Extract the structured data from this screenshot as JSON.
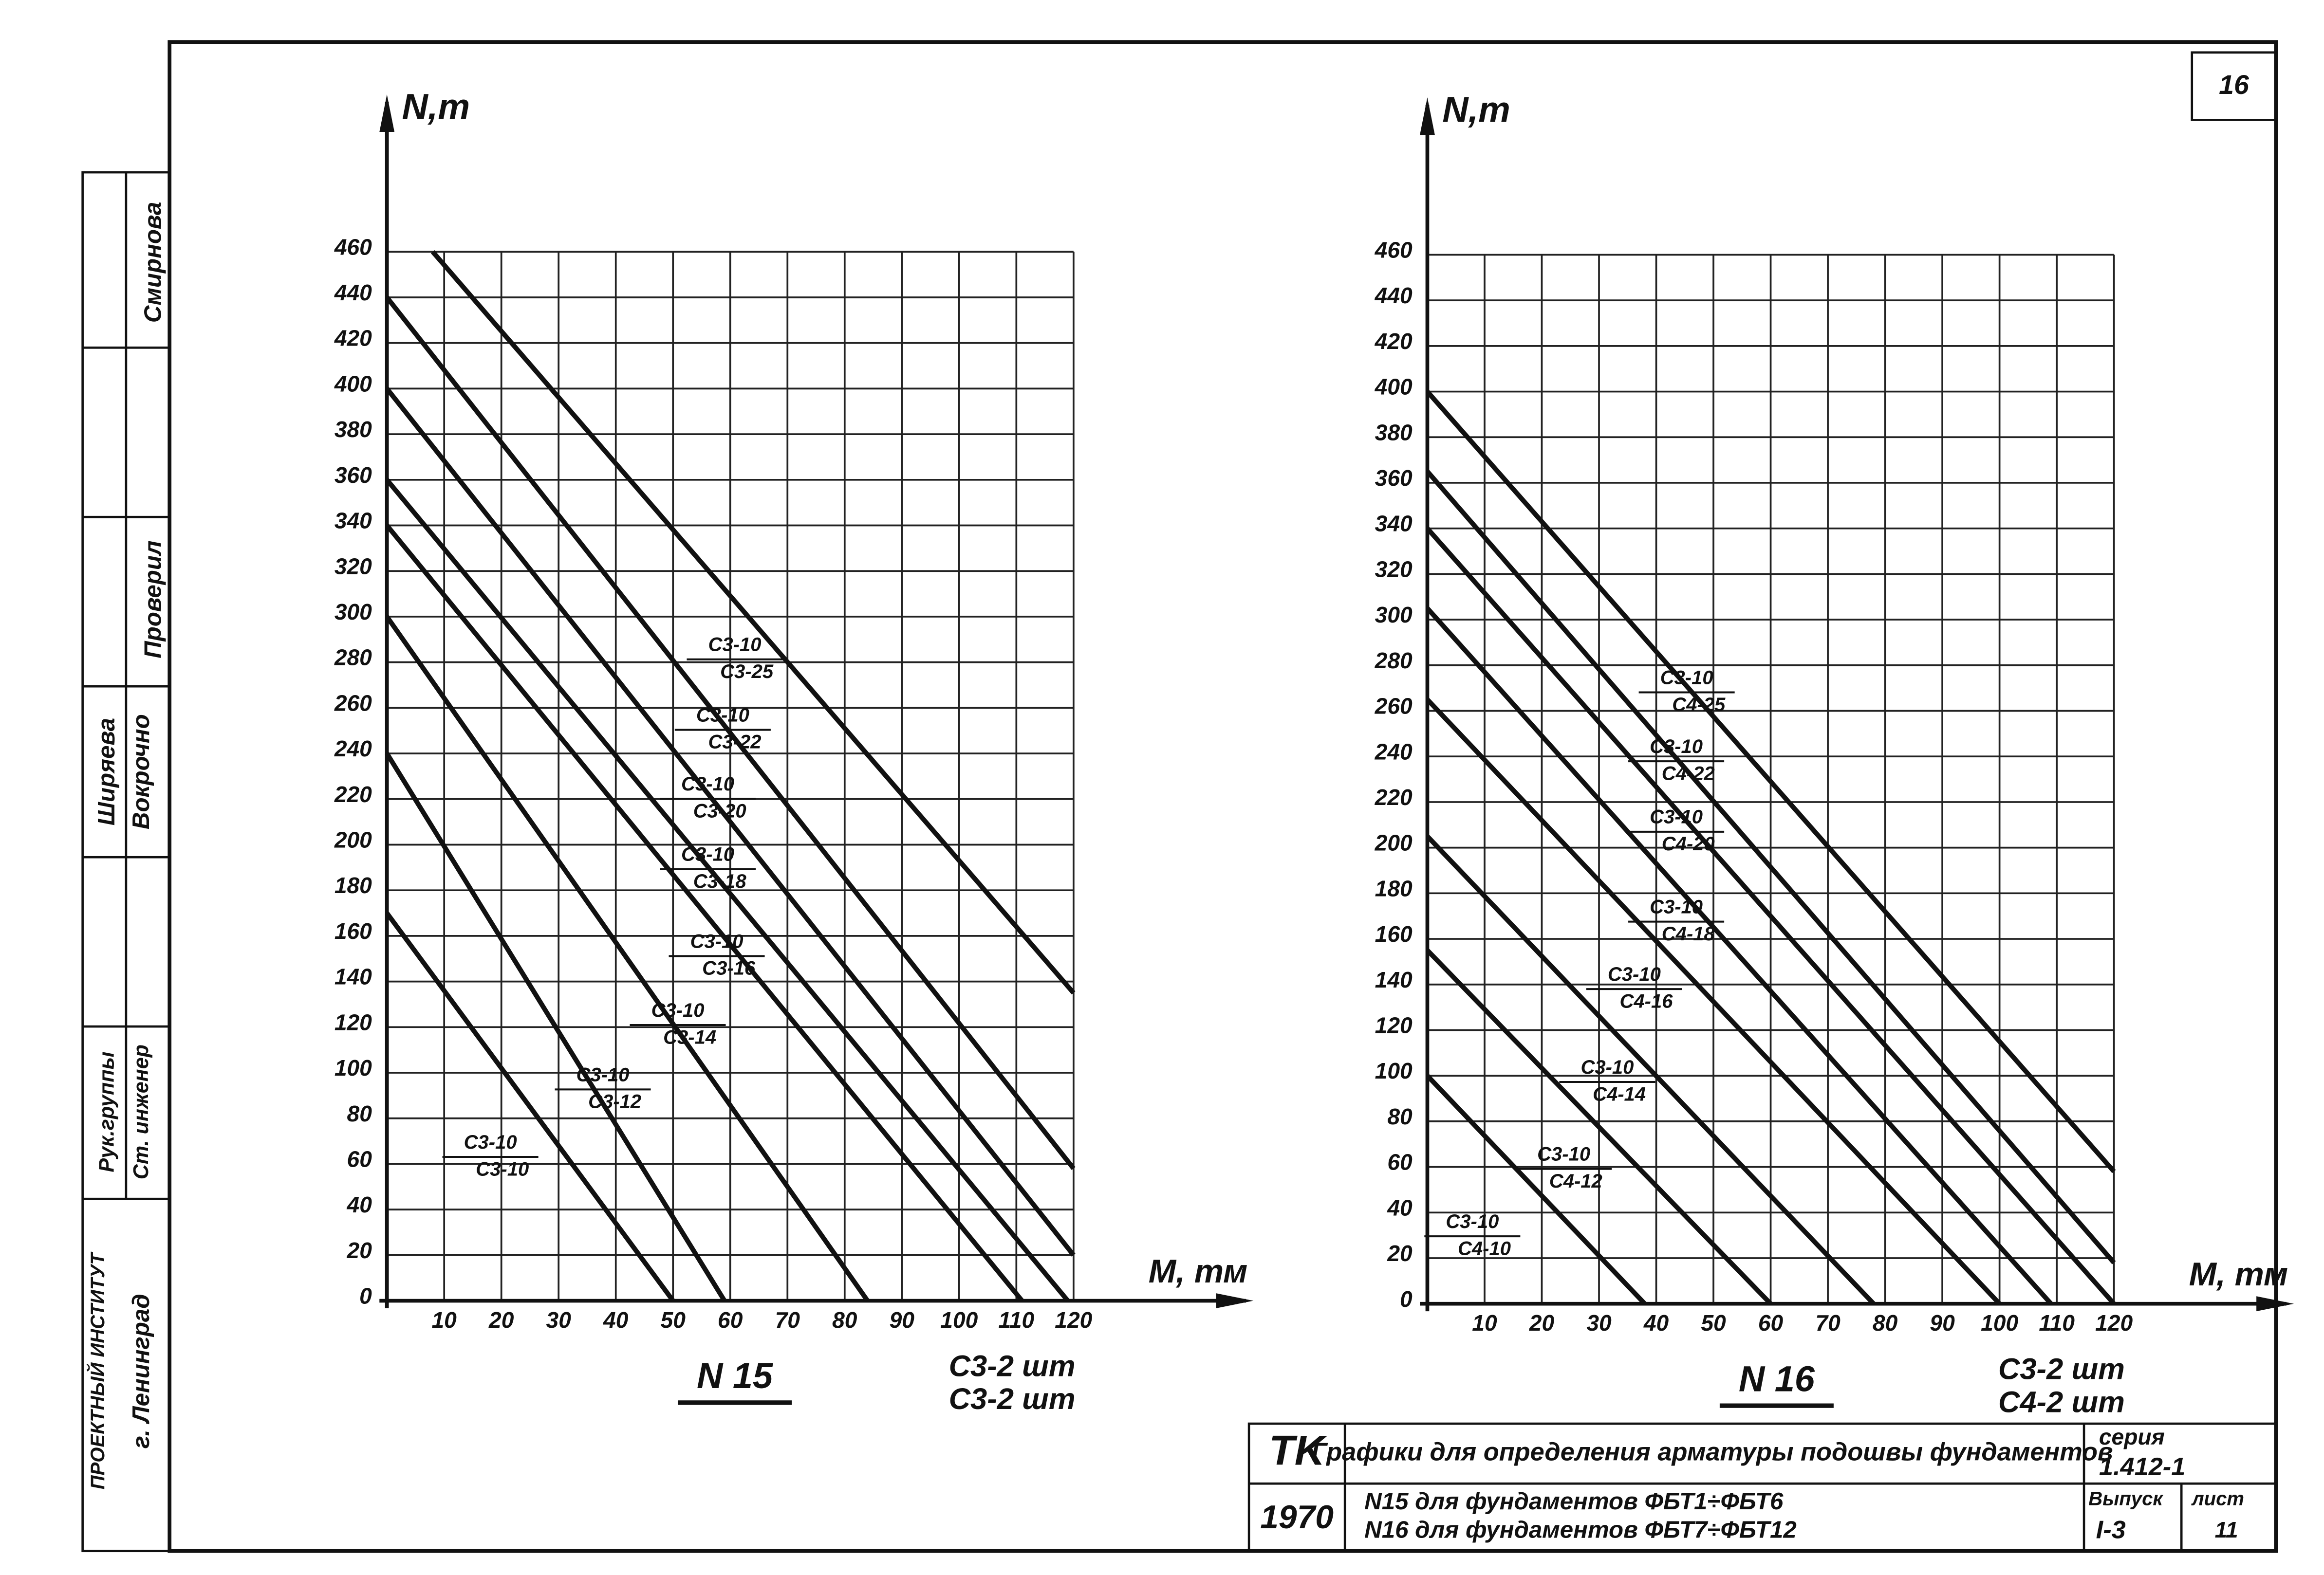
{
  "page_number": "16",
  "chart_data": [
    {
      "type": "line",
      "title": "N 15",
      "ylabel": "N,т",
      "xlabel": "M, тм",
      "notes": [
        "C3-2 шт",
        "C3-2 шт"
      ],
      "xlim": [
        0,
        120
      ],
      "ylim": [
        0,
        460
      ],
      "xticks": [
        10,
        20,
        30,
        40,
        50,
        60,
        70,
        80,
        90,
        100,
        110,
        120
      ],
      "yticks": [
        0,
        20,
        40,
        60,
        80,
        100,
        120,
        140,
        160,
        180,
        200,
        220,
        240,
        260,
        280,
        300,
        320,
        340,
        360,
        380,
        400,
        420,
        440,
        460
      ],
      "grid": true,
      "color": "#111111",
      "series": [
        {
          "label": [
            "C3-10",
            "C3-25"
          ],
          "x": [
            8,
            120
          ],
          "values": [
            460,
            135
          ]
        },
        {
          "label": [
            "C3-10",
            "C3-22"
          ],
          "x": [
            0,
            120
          ],
          "values": [
            440,
            58
          ]
        },
        {
          "label": [
            "C3-10",
            "C3-20"
          ],
          "x": [
            0,
            120
          ],
          "values": [
            400,
            20
          ]
        },
        {
          "label": [
            "C3-10",
            "C3-18"
          ],
          "x": [
            0,
            119
          ],
          "values": [
            360,
            0
          ]
        },
        {
          "label": [
            "C3-10",
            "C3-16"
          ],
          "x": [
            0,
            111
          ],
          "values": [
            340,
            0
          ]
        },
        {
          "label": [
            "C3-10",
            "C3-14"
          ],
          "x": [
            0,
            84
          ],
          "values": [
            300,
            0
          ]
        },
        {
          "label": [
            "C3-10",
            "C3-12"
          ],
          "x": [
            0,
            59
          ],
          "values": [
            240,
            0
          ]
        },
        {
          "label": [
            "C3-10",
            "C3-10"
          ],
          "x": [
            0,
            50
          ],
          "values": [
            170,
            0
          ]
        }
      ]
    },
    {
      "type": "line",
      "title": "N 16",
      "ylabel": "N,т",
      "xlabel": "M, тм",
      "notes": [
        "C3-2 шт",
        "C4-2 шт"
      ],
      "xlim": [
        0,
        120
      ],
      "ylim": [
        0,
        460
      ],
      "xticks": [
        10,
        20,
        30,
        40,
        50,
        60,
        70,
        80,
        90,
        100,
        110,
        120
      ],
      "yticks": [
        0,
        20,
        40,
        60,
        80,
        100,
        120,
        140,
        160,
        180,
        200,
        220,
        240,
        260,
        280,
        300,
        320,
        340,
        360,
        380,
        400,
        420,
        440,
        460
      ],
      "grid": true,
      "color": "#111111",
      "series": [
        {
          "label": [
            "C3-10",
            "C4-25"
          ],
          "x": [
            0,
            120
          ],
          "values": [
            400,
            58
          ]
        },
        {
          "label": [
            "C3-10",
            "C4-22"
          ],
          "x": [
            0,
            120
          ],
          "values": [
            365,
            18
          ]
        },
        {
          "label": [
            "C3-10",
            "C4-20"
          ],
          "x": [
            0,
            120
          ],
          "values": [
            340,
            0
          ]
        },
        {
          "label": [
            "C3-10",
            "C4-18"
          ],
          "x": [
            0,
            109
          ],
          "values": [
            305,
            0
          ]
        },
        {
          "label": [
            "C3-10",
            "C4-16"
          ],
          "x": [
            0,
            100
          ],
          "values": [
            265,
            0
          ]
        },
        {
          "label": [
            "C3-10",
            "C4-14"
          ],
          "x": [
            0,
            78
          ],
          "values": [
            205,
            0
          ]
        },
        {
          "label": [
            "C3-10",
            "C4-12"
          ],
          "x": [
            0,
            60
          ],
          "values": [
            155,
            0
          ]
        },
        {
          "label": [
            "C3-10",
            "C4-10"
          ],
          "x": [
            0,
            38
          ],
          "values": [
            100,
            0
          ]
        }
      ]
    }
  ],
  "title_block": {
    "code": "TK",
    "title": "Графики для определения арматуры подошвы фундаментов",
    "series_label": "серия",
    "series_number": "1.412-1",
    "year": "1970",
    "lines": [
      "N15  для  фундаментов    ФБТ1÷ФБТ6",
      "N16  для  фундаментов    ФБТ7÷ФБТ12"
    ],
    "issue_label": "Выпуск",
    "issue": "I-3",
    "sheet_label": "лист",
    "sheet": "11"
  },
  "stamps": [
    "Смирнова",
    "Проверил",
    "Ширяева",
    "Вокрочно",
    "Рук.группы",
    "Ст. инженер",
    "г. Ленинград",
    "ПРОЕКТНЫЙ ИНСТИТУТ"
  ]
}
